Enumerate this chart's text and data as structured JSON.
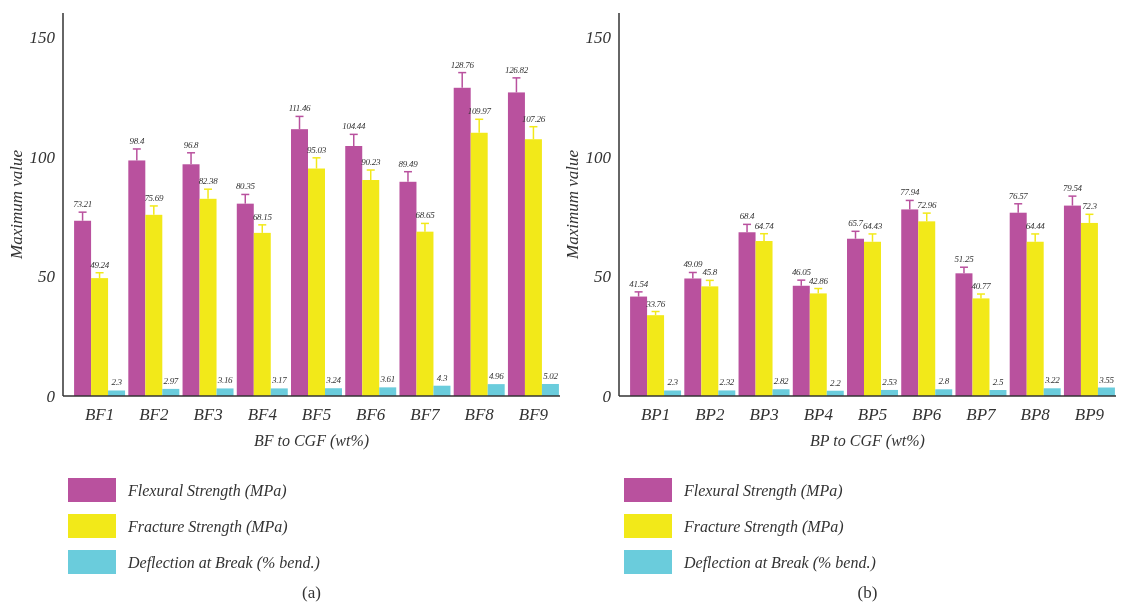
{
  "chart_data": [
    {
      "type": "bar",
      "categories": [
        "BF1",
        "BF2",
        "BF3",
        "BF4",
        "BF5",
        "BF6",
        "BF7",
        "BF8",
        "BF9"
      ],
      "xlabel": "BF to CGF (wt%)",
      "ylabel": "Maximum value",
      "ylim": [
        0,
        160
      ],
      "yticks": [
        0,
        50,
        100,
        150
      ],
      "grid": false,
      "legend": "bottom",
      "data_labels": true,
      "annotations": [
        "(a)"
      ],
      "series": [
        {
          "name": "Flexural Strength (MPa)",
          "color": "#b9519e",
          "values": [
            73.21,
            98.4,
            96.8,
            80.35,
            111.46,
            104.44,
            89.49,
            128.76,
            126.82
          ],
          "errors": [
            [
              73.21,
              76.8
            ],
            [
              98.4,
              103.2
            ],
            [
              96.8,
              101.6
            ],
            [
              80.35,
              84.2
            ],
            [
              111.46,
              116.8
            ],
            [
              104.44,
              109.3
            ],
            [
              89.49,
              93.7
            ],
            [
              128.76,
              135.1
            ],
            [
              126.82,
              132.9
            ]
          ]
        },
        {
          "name": "Fracture Strength (MPa)",
          "color": "#f2e919",
          "values": [
            49.24,
            75.69,
            82.38,
            68.15,
            95.03,
            90.23,
            68.65,
            109.97,
            107.26
          ],
          "errors": [
            [
              49.24,
              51.5
            ],
            [
              75.69,
              79.4
            ],
            [
              82.38,
              86.4
            ],
            [
              68.15,
              71.5
            ],
            [
              95.03,
              99.5
            ],
            [
              90.23,
              94.4
            ],
            [
              68.65,
              72.1
            ],
            [
              109.97,
              115.6
            ],
            [
              107.26,
              112.5
            ]
          ]
        },
        {
          "name": "Deflection at Break (% bend.)",
          "color": "#6accdc",
          "values": [
            2.3,
            2.97,
            3.16,
            3.17,
            3.24,
            3.61,
            4.3,
            4.96,
            5.02
          ]
        }
      ]
    },
    {
      "type": "bar",
      "categories": [
        "BP1",
        "BP2",
        "BP3",
        "BP4",
        "BP5",
        "BP6",
        "BP7",
        "BP8",
        "BP9"
      ],
      "xlabel": "BP to CGF (wt%)",
      "ylabel": "Maximum value",
      "ylim": [
        0,
        160
      ],
      "yticks": [
        0,
        50,
        100,
        150
      ],
      "grid": false,
      "legend": "bottom",
      "data_labels": true,
      "annotations": [
        "(b)"
      ],
      "series": [
        {
          "name": "Flexural Strength (MPa)",
          "color": "#b9519e",
          "values": [
            41.54,
            49.09,
            68.4,
            46.05,
            65.7,
            77.94,
            51.25,
            76.57,
            79.54
          ],
          "errors": [
            [
              41.54,
              43.5
            ],
            [
              49.09,
              51.6
            ],
            [
              68.4,
              71.7
            ],
            [
              46.05,
              48.4
            ],
            [
              65.7,
              68.8
            ],
            [
              77.94,
              81.7
            ],
            [
              51.25,
              53.8
            ],
            [
              76.57,
              80.3
            ],
            [
              79.54,
              83.5
            ]
          ]
        },
        {
          "name": "Fracture Strength (MPa)",
          "color": "#f2e919",
          "values": [
            33.76,
            45.8,
            64.74,
            42.86,
            64.43,
            72.96,
            40.77,
            64.44,
            72.3
          ],
          "errors": [
            [
              33.76,
              35.3
            ],
            [
              45.8,
              48.3
            ],
            [
              64.74,
              67.8
            ],
            [
              42.86,
              44.9
            ],
            [
              64.43,
              67.7
            ],
            [
              72.96,
              76.4
            ],
            [
              40.77,
              42.6
            ],
            [
              64.44,
              67.7
            ],
            [
              72.3,
              75.9
            ]
          ]
        },
        {
          "name": "Deflection at Break (% bend.)",
          "color": "#6accdc",
          "values": [
            2.3,
            2.32,
            2.82,
            2.2,
            2.53,
            2.8,
            2.5,
            3.22,
            3.55
          ]
        }
      ]
    }
  ]
}
